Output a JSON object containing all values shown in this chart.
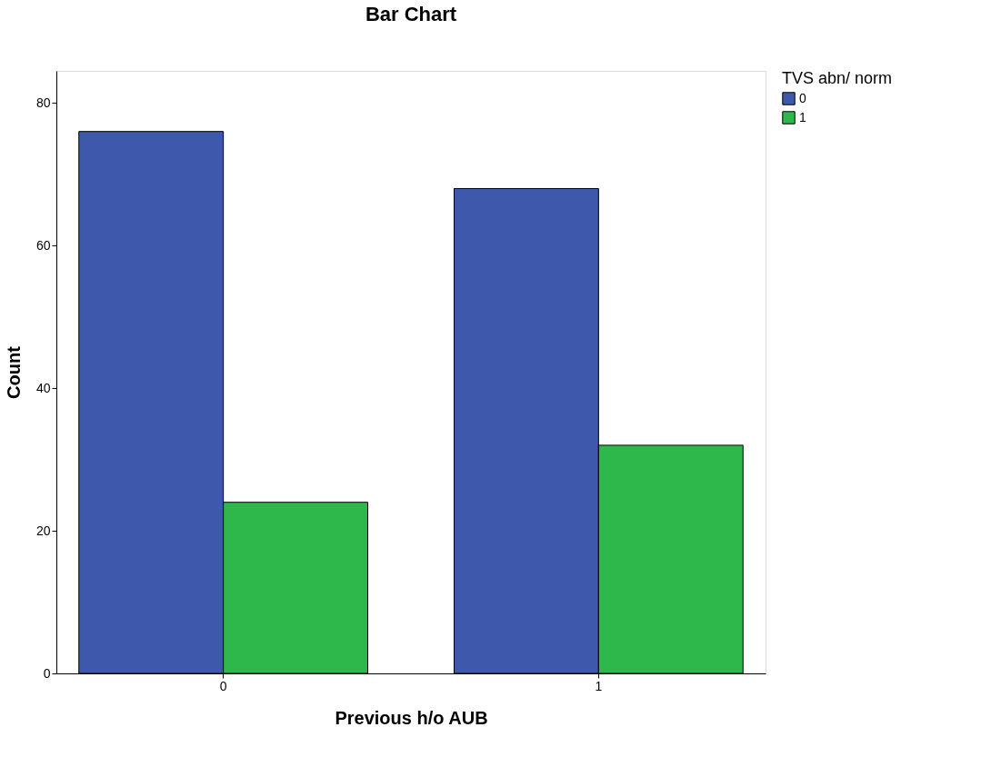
{
  "chart_data": {
    "type": "bar",
    "title": "Bar Chart",
    "xlabel": "Previous h/o AUB",
    "ylabel": "Count",
    "legend_title": "TVS abn/  norm",
    "categories": [
      "0",
      "1"
    ],
    "series": [
      {
        "name": "0",
        "color": "#3e58ac",
        "values": [
          76,
          68
        ]
      },
      {
        "name": "1",
        "color": "#2eb84b",
        "values": [
          24,
          32
        ]
      }
    ],
    "ylim": [
      0,
      84.5
    ],
    "yticks": [
      0,
      20,
      40,
      60,
      80
    ],
    "grid": false,
    "legend": "top right"
  }
}
